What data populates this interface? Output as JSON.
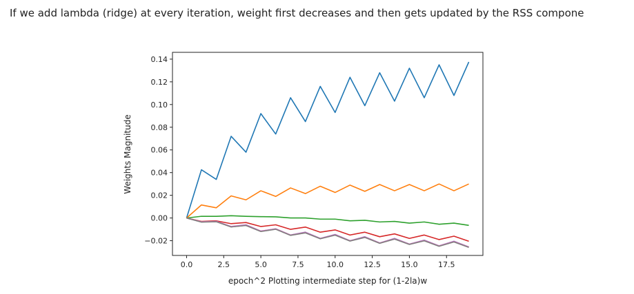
{
  "caption": "If we add lambda (ridge) at every iteration, weight first decreases and then gets updated by the RSS compone",
  "chart_data": {
    "type": "line",
    "xlabel": "epoch^2 Plotting intermediate step for (1-2la)w",
    "ylabel": "Weights Magnitude",
    "xlim": [
      -0.95,
      19.95
    ],
    "ylim": [
      -0.033,
      0.146
    ],
    "xticks": [
      0.0,
      2.5,
      5.0,
      7.5,
      10.0,
      12.5,
      15.0,
      17.5
    ],
    "xtick_labels": [
      "0.0",
      "2.5",
      "5.0",
      "7.5",
      "10.0",
      "12.5",
      "15.0",
      "17.5"
    ],
    "yticks": [
      -0.02,
      0.0,
      0.02,
      0.04,
      0.06,
      0.08,
      0.1,
      0.12,
      0.14
    ],
    "ytick_labels": [
      "−0.02",
      "0.00",
      "0.02",
      "0.04",
      "0.06",
      "0.08",
      "0.10",
      "0.12",
      "0.14"
    ],
    "grid": false,
    "x": [
      0,
      1,
      2,
      3,
      4,
      5,
      6,
      7,
      8,
      9,
      10,
      11,
      12,
      13,
      14,
      15,
      16,
      17,
      18,
      19
    ],
    "series": [
      {
        "color": "#1f77b4",
        "values": [
          0.0,
          0.0425,
          0.034,
          0.072,
          0.058,
          0.092,
          0.074,
          0.106,
          0.085,
          0.116,
          0.093,
          0.124,
          0.099,
          0.128,
          0.103,
          0.132,
          0.106,
          0.135,
          0.108,
          0.1375
        ]
      },
      {
        "color": "#ff7f0e",
        "values": [
          0.0,
          0.0115,
          0.009,
          0.0195,
          0.016,
          0.024,
          0.019,
          0.0265,
          0.0215,
          0.028,
          0.0225,
          0.029,
          0.0235,
          0.0295,
          0.024,
          0.0295,
          0.024,
          0.03,
          0.024,
          0.03
        ]
      },
      {
        "color": "#2ca02c",
        "values": [
          0.0,
          0.0015,
          0.0015,
          0.002,
          0.0015,
          0.0012,
          0.001,
          0.0,
          0.0,
          -0.001,
          -0.001,
          -0.0025,
          -0.002,
          -0.0035,
          -0.003,
          -0.0045,
          -0.0035,
          -0.0055,
          -0.0045,
          -0.0065
        ]
      },
      {
        "color": "#d62728",
        "values": [
          0.0,
          -0.003,
          -0.0025,
          -0.005,
          -0.004,
          -0.0075,
          -0.006,
          -0.01,
          -0.008,
          -0.0125,
          -0.0105,
          -0.015,
          -0.0125,
          -0.0165,
          -0.014,
          -0.018,
          -0.015,
          -0.019,
          -0.016,
          -0.0205
        ]
      },
      {
        "color": "#9467bd",
        "values": [
          0.0,
          -0.0035,
          -0.003,
          -0.0075,
          -0.006,
          -0.0115,
          -0.0095,
          -0.015,
          -0.0125,
          -0.018,
          -0.0145,
          -0.02,
          -0.0165,
          -0.022,
          -0.018,
          -0.023,
          -0.0195,
          -0.0245,
          -0.0205,
          -0.0255
        ]
      },
      {
        "color": "#8c564b",
        "values": [
          0.0,
          -0.0035,
          -0.0032,
          -0.0078,
          -0.0065,
          -0.0118,
          -0.0098,
          -0.0152,
          -0.013,
          -0.0182,
          -0.015,
          -0.0202,
          -0.017,
          -0.0222,
          -0.0185,
          -0.0232,
          -0.02,
          -0.0248,
          -0.021,
          -0.0258
        ]
      },
      {
        "color": "#e377c2",
        "values": [
          0.0,
          -0.0033,
          -0.003,
          -0.0076,
          -0.0063,
          -0.0116,
          -0.0096,
          -0.0151,
          -0.0128,
          -0.0181,
          -0.0148,
          -0.0201,
          -0.0168,
          -0.0221,
          -0.0183,
          -0.0231,
          -0.0198,
          -0.0246,
          -0.0208,
          -0.0256
        ]
      },
      {
        "color": "#7f7f7f",
        "values": [
          0.0,
          -0.0036,
          -0.0033,
          -0.0079,
          -0.0066,
          -0.0119,
          -0.0099,
          -0.0153,
          -0.0131,
          -0.0183,
          -0.0151,
          -0.0203,
          -0.0171,
          -0.0223,
          -0.0186,
          -0.0233,
          -0.0201,
          -0.0249,
          -0.0211,
          -0.0259
        ]
      }
    ]
  }
}
